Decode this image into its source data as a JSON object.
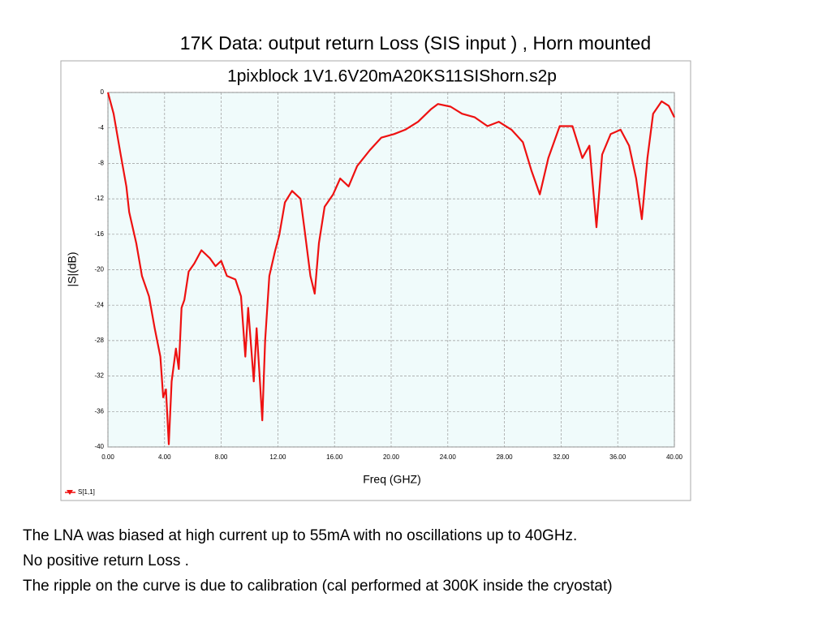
{
  "slide": {
    "title": "17K Data: output return Loss (SIS input ) , Horn mounted",
    "notes": [
      "The LNA was biased at high current up to 55mA with no oscillations up to 40GHz.",
      "No positive return Loss .",
      "The ripple on the curve is due to calibration (cal performed at 300K inside the cryostat)"
    ]
  },
  "chart_data": {
    "type": "line",
    "title": "1pixblock 1V1.6V20mA20KS11SIShorn.s2p",
    "x_label": "Freq (GHZ)",
    "y_label": "|S|(dB)",
    "x": [
      0,
      0.4,
      0.9,
      1.3,
      1.5,
      2.0,
      2.4,
      2.9,
      3.3,
      3.7,
      3.9,
      4.1,
      4.3,
      4.5,
      4.8,
      5.0,
      5.2,
      5.4,
      5.7,
      6.1,
      6.6,
      7.2,
      7.6,
      8.0,
      8.4,
      9.0,
      9.4,
      9.7,
      9.9,
      10.3,
      10.5,
      10.7,
      10.9,
      11.1,
      11.4,
      11.8,
      12.1,
      12.5,
      13.0,
      13.6,
      13.9,
      14.3,
      14.6,
      14.9,
      15.3,
      15.9,
      16.4,
      17.0,
      17.6,
      18.5,
      19.3,
      20.2,
      21.0,
      21.9,
      22.8,
      23.3,
      24.2,
      25.0,
      25.9,
      26.8,
      27.6,
      28.5,
      29.3,
      29.9,
      30.5,
      31.1,
      31.9,
      32.8,
      33.5,
      34.0,
      34.5,
      34.9,
      35.5,
      36.2,
      36.8,
      37.3,
      37.7,
      38.1,
      38.5,
      39.1,
      39.6,
      40.0
    ],
    "series": [
      {
        "name": "S[1,1]",
        "color": "#ee1111",
        "values": [
          0,
          -2.4,
          -7,
          -10.6,
          -13.5,
          -17,
          -20.7,
          -23,
          -26.6,
          -29.8,
          -34.4,
          -33.5,
          -39.7,
          -32.6,
          -28.9,
          -31.2,
          -24.3,
          -23.4,
          -20.2,
          -19.3,
          -17.8,
          -18.7,
          -19.6,
          -19,
          -20.7,
          -21.1,
          -23,
          -29.8,
          -24.3,
          -32.6,
          -26.6,
          -31.7,
          -37,
          -28,
          -20.7,
          -17.9,
          -16.1,
          -12.4,
          -11.1,
          -12,
          -15.7,
          -20.7,
          -22.7,
          -17,
          -12.9,
          -11.5,
          -9.7,
          -10.6,
          -8.3,
          -6.5,
          -5.1,
          -4.7,
          -4.2,
          -3.3,
          -1.9,
          -1.3,
          -1.6,
          -2.4,
          -2.8,
          -3.8,
          -3.3,
          -4.2,
          -5.6,
          -8.8,
          -11.5,
          -7.4,
          -3.8,
          -3.8,
          -7.4,
          -6,
          -15.2,
          -7,
          -4.7,
          -4.2,
          -6,
          -9.7,
          -14.3,
          -7.4,
          -2.4,
          -1,
          -1.5,
          -2.8
        ]
      }
    ],
    "xlim": [
      0,
      40
    ],
    "xticks": [
      {
        "value": 0,
        "label": "0.00"
      },
      {
        "value": 4,
        "label": "4.00"
      },
      {
        "value": 8,
        "label": "8.00"
      },
      {
        "value": 12,
        "label": "12.00"
      },
      {
        "value": 16,
        "label": "16.00"
      },
      {
        "value": 20,
        "label": "20.00"
      },
      {
        "value": 24,
        "label": "24.00"
      },
      {
        "value": 28,
        "label": "28.00"
      },
      {
        "value": 32,
        "label": "32.00"
      },
      {
        "value": 36,
        "label": "36.00"
      },
      {
        "value": 40,
        "label": "40.00"
      }
    ],
    "ylim": [
      -40,
      0
    ],
    "yticks": [
      0,
      -4,
      -8,
      -12,
      -16,
      -20,
      -24,
      -28,
      -32,
      -36,
      -40
    ],
    "grid": true,
    "legend": "bottom-left"
  }
}
